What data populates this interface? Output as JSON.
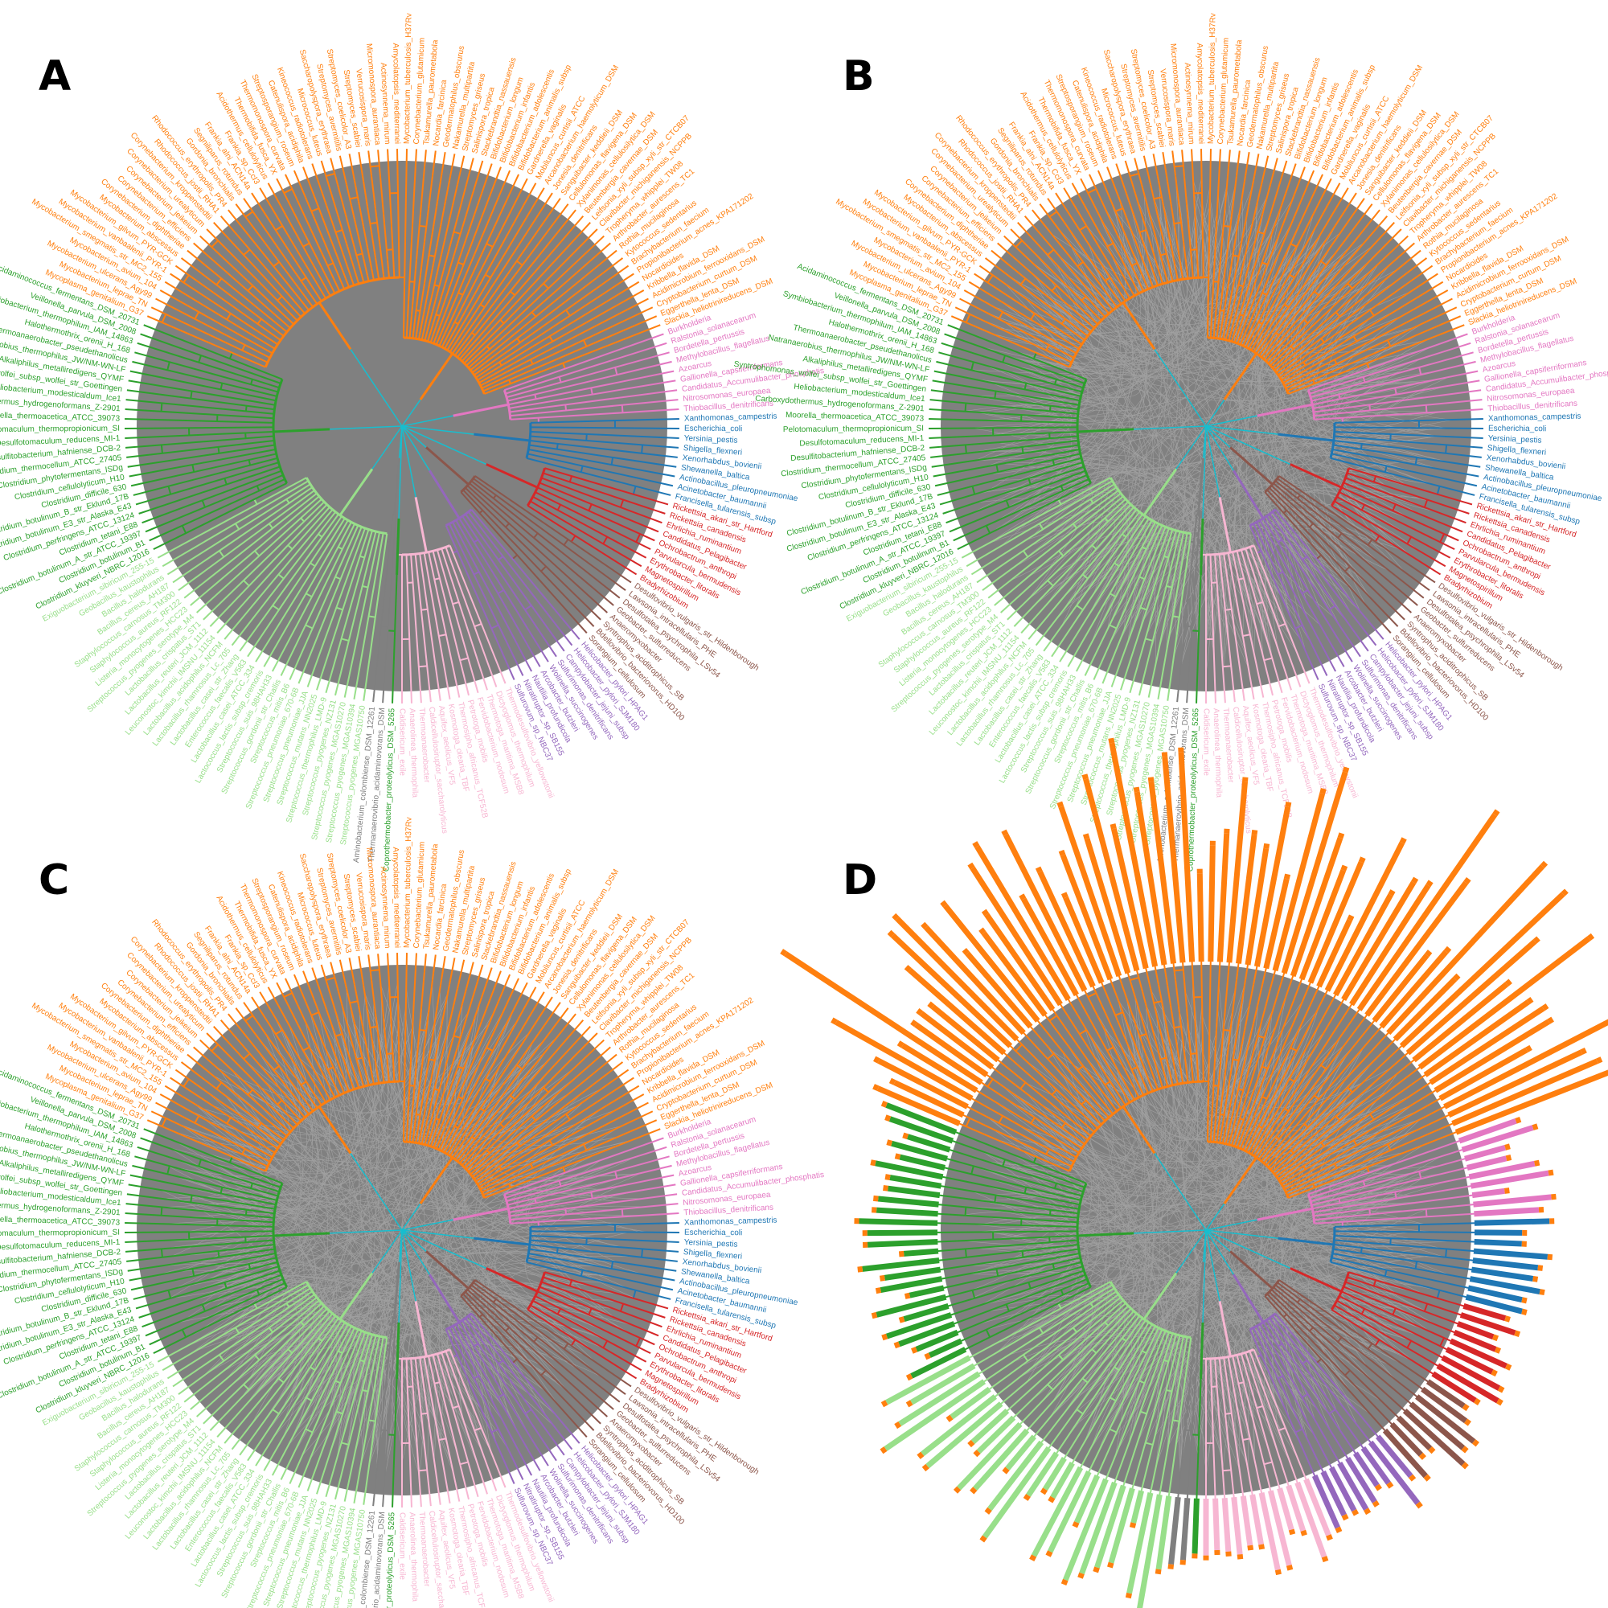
{
  "figure": {
    "panels": [
      {
        "letter": "A",
        "variant": "tree"
      },
      {
        "letter": "B",
        "variant": "tree-links"
      },
      {
        "letter": "C",
        "variant": "tree-links"
      },
      {
        "letter": "D",
        "variant": "tree-links-bars"
      }
    ]
  },
  "colors": {
    "background_disc": "#808080",
    "links": "#a6a6a6",
    "backbone": "#17becf",
    "clades": {
      "actinobacteria": "#ff7f0e",
      "firmicutes_dark": "#2ca02c",
      "firmicutes_light": "#98df8a",
      "betaproteo": "#e377c2",
      "gammaproteo": "#1f77b4",
      "alphaproteo": "#d62728",
      "deltaproteo": "#8c564b",
      "epsilonproteo": "#9467bd",
      "other_pink": "#f7b6d2",
      "other_salmon": "#ff9896",
      "other_green": "#2ca02c",
      "grey": "#7f7f7f"
    }
  },
  "taxa": [
    {
      "label": "Mycobacterium_tuberculosis_H37Rv",
      "clade": "actinobacteria"
    },
    {
      "label": "Corynebacterium_glutamicum",
      "clade": "actinobacteria"
    },
    {
      "label": "Tsukamurella_paurometabola",
      "clade": "actinobacteria"
    },
    {
      "label": "Nocardia_farcinica",
      "clade": "actinobacteria"
    },
    {
      "label": "Geodermatophilus_obscurus",
      "clade": "actinobacteria"
    },
    {
      "label": "Nakamurella_multipartita",
      "clade": "actinobacteria"
    },
    {
      "label": "Streptomyces_griseus",
      "clade": "actinobacteria"
    },
    {
      "label": "Salinispora_tropica",
      "clade": "actinobacteria"
    },
    {
      "label": "Stackebrandtia_nassauensis",
      "clade": "actinobacteria"
    },
    {
      "label": "Bifidobacterium_longum",
      "clade": "actinobacteria"
    },
    {
      "label": "Bifidobacterium_infantis",
      "clade": "actinobacteria"
    },
    {
      "label": "Bifidobacterium_adolescentis",
      "clade": "actinobacteria"
    },
    {
      "label": "Bifidobacterium_animalis_subsp",
      "clade": "actinobacteria"
    },
    {
      "label": "Gardnerella_vaginalis",
      "clade": "actinobacteria"
    },
    {
      "label": "Mobiluncus_curtisii_ATCC",
      "clade": "actinobacteria"
    },
    {
      "label": "Arcanobacterium_haemolyticum_DSM",
      "clade": "actinobacteria"
    },
    {
      "label": "Jonesia_denitrificans",
      "clade": "actinobacteria"
    },
    {
      "label": "Sanguibacter_keddieii_DSM",
      "clade": "actinobacteria"
    },
    {
      "label": "Cellulomonas_flavigena_DSM",
      "clade": "actinobacteria"
    },
    {
      "label": "Xylanimonas_cellulosilytica_DSM",
      "clade": "actinobacteria"
    },
    {
      "label": "Beutenbergia_cavernae_DSM",
      "clade": "actinobacteria"
    },
    {
      "label": "Leifsonia_xyli_subsp_xyli_str_CTCB07",
      "clade": "actinobacteria"
    },
    {
      "label": "Clavibacter_michiganensis_NCPPB",
      "clade": "actinobacteria"
    },
    {
      "label": "Tropheryma_whipplei_TW08",
      "clade": "actinobacteria"
    },
    {
      "label": "Arthrobacter_aurescens_TC1",
      "clade": "actinobacteria"
    },
    {
      "label": "Rothia_mucilaginosa",
      "clade": "actinobacteria"
    },
    {
      "label": "Kytococcus_sedentarius",
      "clade": "actinobacteria"
    },
    {
      "label": "Brachybacterium_faecium",
      "clade": "actinobacteria"
    },
    {
      "label": "Propionibacterium_acnes_KPA171202",
      "clade": "actinobacteria"
    },
    {
      "label": "Nocardioides",
      "clade": "actinobacteria"
    },
    {
      "label": "Kribbella_flavida_DSM",
      "clade": "actinobacteria"
    },
    {
      "label": "Acidimicrobium_ferrooxidans_DSM",
      "clade": "actinobacteria"
    },
    {
      "label": "Cryptobacterium_curtum_DSM",
      "clade": "actinobacteria"
    },
    {
      "label": "Eggerthella_lenta_DSM",
      "clade": "actinobacteria"
    },
    {
      "label": "Slackia_heliotrinireducens_DSM",
      "clade": "actinobacteria"
    },
    {
      "label": "Burkholderia",
      "clade": "betaproteo"
    },
    {
      "label": "Ralstonia_solanacearum",
      "clade": "betaproteo"
    },
    {
      "label": "Bordetella_pertussis",
      "clade": "betaproteo"
    },
    {
      "label": "Methylobacillus_flagellatus",
      "clade": "betaproteo"
    },
    {
      "label": "Azoarcus",
      "clade": "betaproteo"
    },
    {
      "label": "Gallionella_capsiferriformans",
      "clade": "betaproteo"
    },
    {
      "label": "Candidatus_Accumulibacter_phosphatis",
      "clade": "betaproteo"
    },
    {
      "label": "Nitrosomonas_europaea",
      "clade": "betaproteo"
    },
    {
      "label": "Thiobacillus_denitrificans",
      "clade": "betaproteo"
    },
    {
      "label": "Xanthomonas_campestris",
      "clade": "gammaproteo"
    },
    {
      "label": "Escherichia_coli",
      "clade": "gammaproteo"
    },
    {
      "label": "Yersinia_pestis",
      "clade": "gammaproteo"
    },
    {
      "label": "Shigella_flexneri",
      "clade": "gammaproteo"
    },
    {
      "label": "Xenorhabdus_bovienii",
      "clade": "gammaproteo"
    },
    {
      "label": "Shewanella_baltica",
      "clade": "gammaproteo"
    },
    {
      "label": "Actinobacillus_pleuropneumoniae",
      "clade": "gammaproteo"
    },
    {
      "label": "Acinetobacter_baumannii",
      "clade": "gammaproteo"
    },
    {
      "label": "Francisella_tularensis_subsp",
      "clade": "gammaproteo"
    },
    {
      "label": "Rickettsia_akari_str_Hartford",
      "clade": "alphaproteo"
    },
    {
      "label": "Rickettsia_canadensis",
      "clade": "alphaproteo"
    },
    {
      "label": "Ehrlichia_ruminantium",
      "clade": "alphaproteo"
    },
    {
      "label": "Candidatus_Pelagibacter",
      "clade": "alphaproteo"
    },
    {
      "label": "Ochrobactrum_anthropi",
      "clade": "alphaproteo"
    },
    {
      "label": "Parvularcula_bermudensis",
      "clade": "alphaproteo"
    },
    {
      "label": "Erythrobacter_litoralis",
      "clade": "alphaproteo"
    },
    {
      "label": "Magnetospirillum",
      "clade": "alphaproteo"
    },
    {
      "label": "Bradyrhizobium",
      "clade": "alphaproteo"
    },
    {
      "label": "Desulfovibrio_vulgaris_str_Hildenborough",
      "clade": "deltaproteo"
    },
    {
      "label": "Lawsonia_intracellularis_PHE",
      "clade": "deltaproteo"
    },
    {
      "label": "Desulfotalea_psychrophila_LSv54",
      "clade": "deltaproteo"
    },
    {
      "label": "Geobacter_sulfurreducens",
      "clade": "deltaproteo"
    },
    {
      "label": "Anaeromyxobacter",
      "clade": "deltaproteo"
    },
    {
      "label": "Syntrophus_aciditrophicus_SB",
      "clade": "deltaproteo"
    },
    {
      "label": "Bdellovibrio_bacteriovorus_HD100",
      "clade": "deltaproteo"
    },
    {
      "label": "Sorangium_cellulosum",
      "clade": "deltaproteo"
    },
    {
      "label": "Helicobacter_pylori_HPAG1",
      "clade": "epsilonproteo"
    },
    {
      "label": "Helicobacter_pylori_SJM180",
      "clade": "epsilonproteo"
    },
    {
      "label": "Campylobacter_jejuni_subsp",
      "clade": "epsilonproteo"
    },
    {
      "label": "Sulfurimonas_denitrificans",
      "clade": "epsilonproteo"
    },
    {
      "label": "Wolinella_succinogenes",
      "clade": "epsilonproteo"
    },
    {
      "label": "Arcobacter_butzleri",
      "clade": "epsilonproteo"
    },
    {
      "label": "Nautilia_profundicola",
      "clade": "epsilonproteo"
    },
    {
      "label": "Nitratiruptor_sp_SB155",
      "clade": "epsilonproteo"
    },
    {
      "label": "Sulfurovum_sp_NBC37",
      "clade": "epsilonproteo"
    },
    {
      "label": "Thermodesulfovibrio_yellowstonii",
      "clade": "other_pink"
    },
    {
      "label": "Dictyoglomus_thermophilum",
      "clade": "other_pink"
    },
    {
      "label": "Thermotoga_maritima_MSB8",
      "clade": "other_pink"
    },
    {
      "label": "Fervidobacterium_nodosum",
      "clade": "other_pink"
    },
    {
      "label": "Petrotoga_mobilis",
      "clade": "other_pink"
    },
    {
      "label": "Thermosipho_africanus_TCF52B",
      "clade": "other_pink"
    },
    {
      "label": "Kosmotoga_olearia_TBF",
      "clade": "other_pink"
    },
    {
      "label": "Aquifex_aeolicus_VF5",
      "clade": "other_pink"
    },
    {
      "label": "Caldicellulosiruptor_saccharolyticus",
      "clade": "other_pink"
    },
    {
      "label": "Thermoanaerobacter",
      "clade": "other_pink"
    },
    {
      "label": "Anaerolinea_thermophila",
      "clade": "other_pink"
    },
    {
      "label": "Caldisericum_exile",
      "clade": "other_pink"
    },
    {
      "label": "Coprothermobacter_proteolyticus_DSM_5265",
      "clade": "other_green"
    },
    {
      "label": "Thermanaerovibrio_acidaminovorans_DSM",
      "clade": "grey"
    },
    {
      "label": "Aminobacterium_colombiense_DSM_12261",
      "clade": "grey"
    },
    {
      "label": "Streptococcus_pyogenes_MGAS10750",
      "clade": "firmicutes_light"
    },
    {
      "label": "Streptococcus_pyogenes_MGAS10394",
      "clade": "firmicutes_light"
    },
    {
      "label": "Streptococcus_pyogenes_MGAS10270",
      "clade": "firmicutes_light"
    },
    {
      "label": "Streptococcus_pyogenes_NZ131",
      "clade": "firmicutes_light"
    },
    {
      "label": "Streptococcus_thermophilus_LMD-9",
      "clade": "firmicutes_light"
    },
    {
      "label": "Streptococcus_mutans_NN2025",
      "clade": "firmicutes_light"
    },
    {
      "label": "Streptococcus_pneumoniae_JJA",
      "clade": "firmicutes_light"
    },
    {
      "label": "Streptococcus_pneumoniae_670-6B",
      "clade": "firmicutes_light"
    },
    {
      "label": "Streptococcus_mitis_B6",
      "clade": "firmicutes_light"
    },
    {
      "label": "Streptococcus_gordonii_str_Challis",
      "clade": "firmicutes_light"
    },
    {
      "label": "Streptococcus_suis_98HAH33",
      "clade": "firmicutes_light"
    },
    {
      "label": "Lactococcus_lactis_subsp_cremoris",
      "clade": "firmicutes_light"
    },
    {
      "label": "Lactobacillus_casei_ATCC_334",
      "clade": "firmicutes_light"
    },
    {
      "label": "Enterococcus_faecalis_V583",
      "clade": "firmicutes_light"
    },
    {
      "label": "Lactobacillus_casei_str_Zhang",
      "clade": "firmicutes_light"
    },
    {
      "label": "Lactobacillus_rhamnosus_Lc_705",
      "clade": "firmicutes_light"
    },
    {
      "label": "Lactobacillus_acidophilus_NCFM",
      "clade": "firmicutes_light"
    },
    {
      "label": "Leuconostoc_kimchii_IMSNU_11154",
      "clade": "firmicutes_light"
    },
    {
      "label": "Lactobacillus_reuteri_JCM_1112",
      "clade": "firmicutes_light"
    },
    {
      "label": "Lactobacillus_crispatus_ST1",
      "clade": "firmicutes_light"
    },
    {
      "label": "Streptococcus_pyogenes_serotype_M4",
      "clade": "firmicutes_light"
    },
    {
      "label": "Listeria_monocytogenes_HCC23",
      "clade": "firmicutes_light"
    },
    {
      "label": "Staphylococcus_aureus_RF122",
      "clade": "firmicutes_light"
    },
    {
      "label": "Staphylococcus_carnosus_TM300",
      "clade": "firmicutes_light"
    },
    {
      "label": "Bacillus_cereus_AH187",
      "clade": "firmicutes_light"
    },
    {
      "label": "Bacillus_halodurans",
      "clade": "firmicutes_light"
    },
    {
      "label": "Geobacillus_kaustophilus",
      "clade": "firmicutes_light"
    },
    {
      "label": "Exiguobacterium_sibiricum_255-15",
      "clade": "firmicutes_light"
    },
    {
      "label": "Clostridium_kluyveri_NBRC_12016",
      "clade": "firmicutes_dark"
    },
    {
      "label": "Clostridium_botulinum_B1",
      "clade": "firmicutes_dark"
    },
    {
      "label": "Clostridium_botulinum_A_str_ATCC_19397",
      "clade": "firmicutes_dark"
    },
    {
      "label": "Clostridium_tetani_E88",
      "clade": "firmicutes_dark"
    },
    {
      "label": "Clostridium_perfringens_ATCC_13124",
      "clade": "firmicutes_dark"
    },
    {
      "label": "Clostridium_botulinum_E3_str_Alaska_E43",
      "clade": "firmicutes_dark"
    },
    {
      "label": "Clostridium_botulinum_B_str_Eklund_17B",
      "clade": "firmicutes_dark"
    },
    {
      "label": "Clostridium_difficile_630",
      "clade": "firmicutes_dark"
    },
    {
      "label": "Clostridium_cellulolyticum_H10",
      "clade": "firmicutes_dark"
    },
    {
      "label": "Clostridium_phytofermentans_ISDg",
      "clade": "firmicutes_dark"
    },
    {
      "label": "Clostridium_thermocellum_ATCC_27405",
      "clade": "firmicutes_dark"
    },
    {
      "label": "Desulfitobacterium_hafniense_DCB-2",
      "clade": "firmicutes_dark"
    },
    {
      "label": "Desulfotomaculum_reducens_MI-1",
      "clade": "firmicutes_dark"
    },
    {
      "label": "Pelotomaculum_thermopropionicum_SI",
      "clade": "firmicutes_dark"
    },
    {
      "label": "Moorella_thermoacetica_ATCC_39073",
      "clade": "firmicutes_dark"
    },
    {
      "label": "Carboxydothermus_hydrogenoformans_Z-2901",
      "clade": "firmicutes_dark"
    },
    {
      "label": "Heliobacterium_modesticaldum_Ice1",
      "clade": "firmicutes_dark"
    },
    {
      "label": "Syntrophomonas_wolfei_subsp_wolfei_str_Goettingen",
      "clade": "firmicutes_dark"
    },
    {
      "label": "Alkaliphilus_metalliredigens_QYMF",
      "clade": "firmicutes_dark"
    },
    {
      "label": "Natranaerobius_thermophilus_JW/NM-WN-LF",
      "clade": "firmicutes_dark"
    },
    {
      "label": "Thermoanaerobacter_pseudethanolicus",
      "clade": "firmicutes_dark"
    },
    {
      "label": "Halothermothrix_orenii_H_168",
      "clade": "firmicutes_dark"
    },
    {
      "label": "Symbiobacterium_thermophilum_IAM_14863",
      "clade": "firmicutes_dark"
    },
    {
      "label": "Veillonella_parvula_DSM_2008",
      "clade": "firmicutes_dark"
    },
    {
      "label": "Acidaminococcus_fermentans_DSM_20731",
      "clade": "firmicutes_dark"
    },
    {
      "label": "Mycoplasma_genitalium_G37",
      "clade": "actinobacteria"
    },
    {
      "label": "Mycobacterium_leprae_TN",
      "clade": "actinobacteria"
    },
    {
      "label": "Mycobacterium_ulcerans_Agy99",
      "clade": "actinobacteria"
    },
    {
      "label": "Mycobacterium_avium_104",
      "clade": "actinobacteria"
    },
    {
      "label": "Mycobacterium_smegmatis_str_MC2_155",
      "clade": "actinobacteria"
    },
    {
      "label": "Mycobacterium_vanbaalenii_PYR-1",
      "clade": "actinobacteria"
    },
    {
      "label": "Mycobacterium_gilvum_PYR-GCK",
      "clade": "actinobacteria"
    },
    {
      "label": "Mycobacterium_abscessus",
      "clade": "actinobacteria"
    },
    {
      "label": "Corynebacterium_diphtheriae",
      "clade": "actinobacteria"
    },
    {
      "label": "Corynebacterium_efficiens",
      "clade": "actinobacteria"
    },
    {
      "label": "Corynebacterium_jeikeium",
      "clade": "actinobacteria"
    },
    {
      "label": "Corynebacterium_urealyticum",
      "clade": "actinobacteria"
    },
    {
      "label": "Corynebacterium_kroppenstedtii",
      "clade": "actinobacteria"
    },
    {
      "label": "Rhodococcus_jostii_RHA1",
      "clade": "actinobacteria"
    },
    {
      "label": "Rhodococcus_erythropolis_PR4",
      "clade": "actinobacteria"
    },
    {
      "label": "Gordonia_bronchialis",
      "clade": "actinobacteria"
    },
    {
      "label": "Segniliparus_rotundus",
      "clade": "actinobacteria"
    },
    {
      "label": "Frankia_alni_ACN14a",
      "clade": "actinobacteria"
    },
    {
      "label": "Frankia_sp_CcI3",
      "clade": "actinobacteria"
    },
    {
      "label": "Acidothermus_cellulolyticus",
      "clade": "actinobacteria"
    },
    {
      "label": "Thermobifida_fusca_YX",
      "clade": "actinobacteria"
    },
    {
      "label": "Thermomonospora_curvata",
      "clade": "actinobacteria"
    },
    {
      "label": "Streptosporangium_roseum",
      "clade": "actinobacteria"
    },
    {
      "label": "Catenulispora_acidiphila",
      "clade": "actinobacteria"
    },
    {
      "label": "Kineococcus_radiotolerans",
      "clade": "actinobacteria"
    },
    {
      "label": "Micrococcus_luteus",
      "clade": "actinobacteria"
    },
    {
      "label": "Saccharopolyspora_erythraea",
      "clade": "actinobacteria"
    },
    {
      "label": "Streptomyces_avermitilis",
      "clade": "actinobacteria"
    },
    {
      "label": "Streptomyces_coelicolor_A3",
      "clade": "actinobacteria"
    },
    {
      "label": "Streptomyces_scabiei",
      "clade": "actinobacteria"
    },
    {
      "label": "Verrucosispora_maris",
      "clade": "actinobacteria"
    },
    {
      "label": "Micromonospora_aurantiaca",
      "clade": "actinobacteria"
    },
    {
      "label": "Actinosynnema_mirum",
      "clade": "actinobacteria"
    },
    {
      "label": "Amycolatopsis_mediterranei",
      "clade": "actinobacteria"
    }
  ]
}
